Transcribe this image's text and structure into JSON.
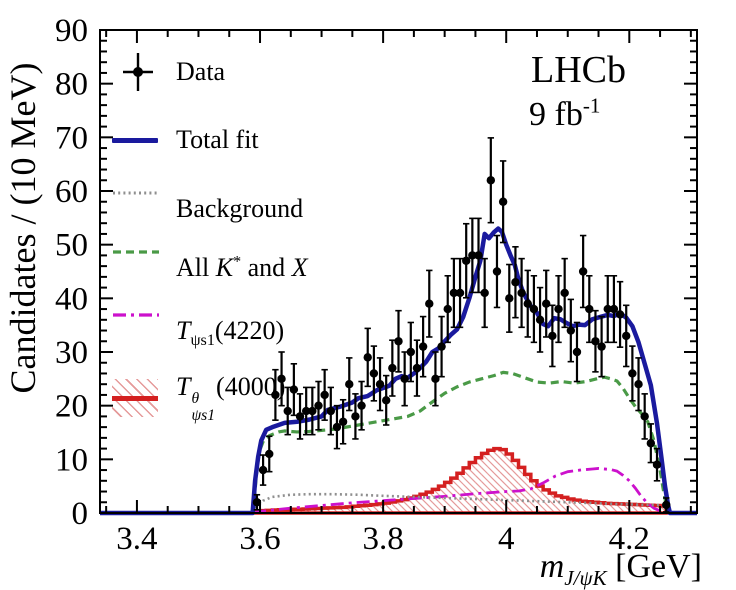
{
  "figure": {
    "experiment_label": "LHCb",
    "luminosity_runs": [
      {
        "t": "9 fb"
      },
      {
        "t": "-1",
        "sup": true
      }
    ]
  },
  "axes": {
    "x_title_runs": [
      {
        "t": "m",
        "i": true
      },
      {
        "t": "J/ψK",
        "sub": true,
        "i": true
      },
      {
        "t": " [GeV]"
      }
    ],
    "y_title": "Candidates / (10 MeV)"
  },
  "legend": [
    {
      "name": "data",
      "style": "errorbar",
      "color": "#000000",
      "runs": [
        {
          "t": "Data"
        }
      ]
    },
    {
      "name": "total-fit",
      "style": "solid",
      "color": "#1a1a9e",
      "runs": [
        {
          "t": "Total fit"
        }
      ]
    },
    {
      "name": "background",
      "style": "dotted",
      "color": "#8f8f8f",
      "runs": [
        {
          "t": "Background"
        }
      ]
    },
    {
      "name": "all-kstar-and-x",
      "style": "dashed",
      "color": "#4a9a47",
      "runs": [
        {
          "t": "All "
        },
        {
          "t": "K",
          "i": true
        },
        {
          "t": "*",
          "sup": true
        },
        {
          "t": " and "
        },
        {
          "t": "X",
          "i": true
        }
      ]
    },
    {
      "name": "t-psis1-4220",
      "style": "dashdot",
      "color": "#cc11cc",
      "runs": [
        {
          "t": "T",
          "i": true
        },
        {
          "t": "ψs1",
          "sub": true
        },
        {
          "t": "(4220)"
        }
      ]
    },
    {
      "name": "t-psis1-theta-4000",
      "style": "hist",
      "color": "#d42020",
      "hatch": "#e59a9a",
      "runs": [
        {
          "t": "T",
          "i": true
        },
        {
          "stack": {
            "sup": "θ",
            "sub": "ψs1"
          }
        },
        {
          "t": "(4000)"
        }
      ]
    }
  ],
  "chart_data": {
    "type": "line",
    "title": "LHCb 9 fb-1",
    "xlabel": "m_J/psiK [GeV]",
    "ylabel": "Candidates / (10 MeV)",
    "xlim": [
      3.34,
      4.31
    ],
    "ylim": [
      0,
      90
    ],
    "x_major_ticks": [
      3.4,
      3.6,
      3.8,
      4.0,
      4.2
    ],
    "x_tick_labels": [
      "3.4",
      "3.6",
      "3.8",
      "4",
      "4.2"
    ],
    "x_minor_step": 0.05,
    "y_major_step": 10,
    "y_tick_labels": [
      "0",
      "10",
      "20",
      "30",
      "40",
      "50",
      "60",
      "70",
      "80",
      "90"
    ],
    "y_minor_step": 2,
    "grid": false,
    "legend_position": "top-left",
    "bin_width_gev": 0.01,
    "series": [
      {
        "name": "Data",
        "draw": "errorbar",
        "color": "#000000",
        "x": [
          3.595,
          3.605,
          3.615,
          3.625,
          3.635,
          3.645,
          3.655,
          3.665,
          3.675,
          3.685,
          3.695,
          3.705,
          3.715,
          3.725,
          3.735,
          3.745,
          3.755,
          3.765,
          3.775,
          3.785,
          3.795,
          3.805,
          3.815,
          3.825,
          3.835,
          3.845,
          3.855,
          3.865,
          3.875,
          3.885,
          3.895,
          3.905,
          3.915,
          3.925,
          3.935,
          3.945,
          3.955,
          3.965,
          3.975,
          3.985,
          3.995,
          4.005,
          4.015,
          4.025,
          4.035,
          4.045,
          4.055,
          4.065,
          4.075,
          4.085,
          4.095,
          4.105,
          4.115,
          4.125,
          4.135,
          4.145,
          4.155,
          4.165,
          4.175,
          4.185,
          4.195,
          4.205,
          4.215,
          4.225,
          4.235,
          4.245,
          4.26
        ],
        "y": [
          2,
          8,
          11,
          22,
          25,
          19,
          23,
          18,
          19,
          19,
          20,
          22,
          19,
          16,
          17,
          24,
          18,
          20,
          29,
          26,
          24,
          21,
          27,
          32,
          25,
          30,
          27,
          31,
          39,
          25,
          31,
          38,
          41,
          41,
          47,
          48,
          48,
          41,
          62,
          45,
          58,
          40,
          43,
          41,
          39,
          38,
          36,
          39,
          33,
          38,
          41,
          34,
          30,
          45,
          38,
          32,
          31,
          38,
          38,
          37,
          33,
          26,
          24,
          18,
          13,
          9,
          1.5
        ],
        "yerr": [
          1.4,
          2.8,
          3.3,
          4.7,
          5,
          4.4,
          4.8,
          4.2,
          4.4,
          4.4,
          4.5,
          4.7,
          4.4,
          4,
          4.1,
          4.9,
          4.2,
          4.5,
          5.4,
          5.1,
          4.9,
          4.6,
          5.2,
          5.7,
          5,
          5.5,
          5.2,
          5.6,
          6.2,
          5,
          5.6,
          6.2,
          6.4,
          6.4,
          6.9,
          6.9,
          6.9,
          6.4,
          7.9,
          6.7,
          7.6,
          6.3,
          6.6,
          6.4,
          6.2,
          6.2,
          6,
          6.2,
          5.7,
          6.2,
          6.4,
          5.8,
          5.5,
          6.7,
          6.2,
          5.7,
          5.6,
          6.2,
          6.2,
          6.1,
          5.7,
          5.1,
          4.9,
          4.2,
          3.6,
          3,
          1.3
        ]
      },
      {
        "name": "Total fit",
        "draw": "line",
        "style": "solid",
        "color": "#1a1a9e",
        "width": 4.5,
        "points": [
          [
            3.34,
            0
          ],
          [
            3.588,
            0
          ],
          [
            3.592,
            6
          ],
          [
            3.597,
            10.5
          ],
          [
            3.602,
            13.5
          ],
          [
            3.61,
            15.5
          ],
          [
            3.62,
            16
          ],
          [
            3.64,
            16.8
          ],
          [
            3.66,
            17
          ],
          [
            3.68,
            17.4
          ],
          [
            3.7,
            18
          ],
          [
            3.71,
            19.2
          ],
          [
            3.73,
            19.8
          ],
          [
            3.75,
            20.6
          ],
          [
            3.76,
            21.4
          ],
          [
            3.775,
            21.8
          ],
          [
            3.79,
            22.9
          ],
          [
            3.8,
            23.3
          ],
          [
            3.81,
            23.7
          ],
          [
            3.82,
            25
          ],
          [
            3.83,
            25.5
          ],
          [
            3.84,
            25.2
          ],
          [
            3.85,
            26
          ],
          [
            3.86,
            27
          ],
          [
            3.87,
            28.2
          ],
          [
            3.88,
            30
          ],
          [
            3.89,
            30.7
          ],
          [
            3.9,
            32
          ],
          [
            3.91,
            33.2
          ],
          [
            3.92,
            34.2
          ],
          [
            3.93,
            36.5
          ],
          [
            3.94,
            40
          ],
          [
            3.95,
            44
          ],
          [
            3.958,
            47
          ],
          [
            3.965,
            52
          ],
          [
            3.972,
            51.2
          ],
          [
            3.98,
            52.3
          ],
          [
            3.987,
            53
          ],
          [
            3.993,
            52.4
          ],
          [
            4.0,
            50
          ],
          [
            4.007,
            48
          ],
          [
            4.014,
            46.2
          ],
          [
            4.02,
            43.5
          ],
          [
            4.028,
            41
          ],
          [
            4.04,
            38.5
          ],
          [
            4.05,
            37.3
          ],
          [
            4.06,
            35.2
          ],
          [
            4.068,
            34.8
          ],
          [
            4.078,
            36.3
          ],
          [
            4.088,
            36.1
          ],
          [
            4.098,
            35.4
          ],
          [
            4.108,
            34.8
          ],
          [
            4.118,
            35.1
          ],
          [
            4.128,
            35
          ],
          [
            4.14,
            36.1
          ],
          [
            4.155,
            36.6
          ],
          [
            4.165,
            36.9
          ],
          [
            4.175,
            36.7
          ],
          [
            4.185,
            37.2
          ],
          [
            4.195,
            36.4
          ],
          [
            4.205,
            34.8
          ],
          [
            4.215,
            31.8
          ],
          [
            4.225,
            27.8
          ],
          [
            4.235,
            23.8
          ],
          [
            4.245,
            16.7
          ],
          [
            4.252,
            10.5
          ],
          [
            4.258,
            5
          ],
          [
            4.263,
            1.5
          ],
          [
            4.266,
            0
          ],
          [
            4.31,
            0
          ]
        ]
      },
      {
        "name": "Background",
        "draw": "line",
        "style": "dotted",
        "color": "#8f8f8f",
        "width": 2.6,
        "points": [
          [
            3.589,
            0
          ],
          [
            3.596,
            1.3
          ],
          [
            3.605,
            2.3
          ],
          [
            3.62,
            3
          ],
          [
            3.65,
            3.4
          ],
          [
            3.68,
            3.5
          ],
          [
            3.72,
            3.5
          ],
          [
            3.76,
            3.4
          ],
          [
            3.8,
            3.2
          ],
          [
            3.85,
            3
          ],
          [
            3.9,
            2.8
          ],
          [
            3.95,
            2.6
          ],
          [
            4.0,
            2.4
          ],
          [
            4.05,
            2.2
          ],
          [
            4.1,
            2
          ],
          [
            4.15,
            1.8
          ],
          [
            4.2,
            1.6
          ],
          [
            4.25,
            1.45
          ],
          [
            4.267,
            1.4
          ]
        ]
      },
      {
        "name": "All K* and X",
        "draw": "line",
        "style": "dashed",
        "color": "#4a9a47",
        "width": 3.2,
        "points": [
          [
            3.589,
            0
          ],
          [
            3.594,
            7
          ],
          [
            3.599,
            11.5
          ],
          [
            3.606,
            13.6
          ],
          [
            3.615,
            14.4
          ],
          [
            3.63,
            15.1
          ],
          [
            3.64,
            15.3
          ],
          [
            3.66,
            15.1
          ],
          [
            3.68,
            15.2
          ],
          [
            3.7,
            15.4
          ],
          [
            3.72,
            15.6
          ],
          [
            3.74,
            16
          ],
          [
            3.76,
            16.4
          ],
          [
            3.78,
            16.8
          ],
          [
            3.8,
            17.2
          ],
          [
            3.82,
            17.6
          ],
          [
            3.84,
            18
          ],
          [
            3.86,
            19
          ],
          [
            3.88,
            20.7
          ],
          [
            3.9,
            22.3
          ],
          [
            3.92,
            23.5
          ],
          [
            3.94,
            24.4
          ],
          [
            3.96,
            25
          ],
          [
            3.98,
            25.6
          ],
          [
            3.995,
            26.2
          ],
          [
            4.01,
            26
          ],
          [
            4.03,
            25.2
          ],
          [
            4.05,
            24.4
          ],
          [
            4.07,
            24.2
          ],
          [
            4.09,
            24.5
          ],
          [
            4.11,
            24.2
          ],
          [
            4.13,
            24.5
          ],
          [
            4.15,
            25.1
          ],
          [
            4.16,
            25.3
          ],
          [
            4.17,
            25
          ],
          [
            4.18,
            24.6
          ],
          [
            4.19,
            23.2
          ],
          [
            4.2,
            21.4
          ],
          [
            4.21,
            19.8
          ],
          [
            4.22,
            18.5
          ],
          [
            4.23,
            17
          ],
          [
            4.24,
            13.5
          ],
          [
            4.25,
            8
          ],
          [
            4.255,
            4.5
          ],
          [
            4.26,
            1.5
          ],
          [
            4.264,
            0
          ]
        ]
      },
      {
        "name": "T_psis1(4220)",
        "draw": "line",
        "style": "dashdot",
        "color": "#cc11cc",
        "width": 2.8,
        "points": [
          [
            3.589,
            0
          ],
          [
            3.6,
            0.3
          ],
          [
            3.65,
            0.9
          ],
          [
            3.7,
            1.4
          ],
          [
            3.75,
            1.9
          ],
          [
            3.8,
            2.3
          ],
          [
            3.85,
            2.7
          ],
          [
            3.9,
            3.1
          ],
          [
            3.95,
            3.6
          ],
          [
            4.0,
            4
          ],
          [
            4.02,
            4.1
          ],
          [
            4.04,
            4.5
          ],
          [
            4.06,
            5.6
          ],
          [
            4.08,
            6.9
          ],
          [
            4.1,
            7.7
          ],
          [
            4.12,
            8
          ],
          [
            4.14,
            8.2
          ],
          [
            4.15,
            8.3
          ],
          [
            4.17,
            8.1
          ],
          [
            4.18,
            7.8
          ],
          [
            4.19,
            7
          ],
          [
            4.2,
            6
          ],
          [
            4.21,
            4.6
          ],
          [
            4.22,
            3
          ],
          [
            4.23,
            1.8
          ],
          [
            4.24,
            0.9
          ],
          [
            4.25,
            0.4
          ],
          [
            4.258,
            0.1
          ],
          [
            4.264,
            0
          ]
        ]
      },
      {
        "name": "T_psis1_theta(4000)",
        "draw": "step-histogram",
        "color": "#d42020",
        "hatch_color": "#e59a9a",
        "width": 3.5,
        "bin_start": 3.59,
        "bin_width": 0.01,
        "values": [
          0.4,
          0.45,
          0.5,
          0.55,
          0.6,
          0.65,
          0.7,
          0.7,
          0.75,
          0.8,
          0.85,
          0.9,
          0.95,
          1,
          1.05,
          1.15,
          1.25,
          1.35,
          1.45,
          1.55,
          1.7,
          1.85,
          2.05,
          2.25,
          2.5,
          2.8,
          3.1,
          3.5,
          3.9,
          4.4,
          5,
          5.7,
          6.5,
          7.4,
          8.4,
          9.4,
          10.3,
          11.1,
          11.7,
          12,
          11.8,
          11,
          9.8,
          8.5,
          7.2,
          6,
          5,
          4.3,
          3.7,
          3.2,
          2.9,
          2.6,
          2.4,
          2.2,
          2.1,
          2,
          1.9,
          1.8,
          1.75,
          1.7,
          1.65,
          1.6,
          1.55,
          1.5,
          1.45,
          1.4,
          1.3
        ]
      }
    ]
  }
}
